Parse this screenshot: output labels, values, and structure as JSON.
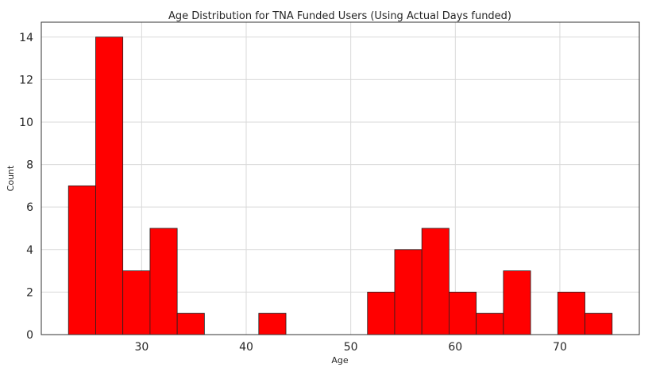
{
  "chart_data": {
    "type": "bar",
    "title": "Age Distribution for TNA Funded Users (Using Actual Days funded)",
    "xlabel": "Age",
    "ylabel": "Count",
    "xlim": [
      20.4,
      77.6
    ],
    "ylim": [
      0,
      14.7
    ],
    "xticks": [
      30,
      40,
      50,
      60,
      70
    ],
    "yticks": [
      0,
      2,
      4,
      6,
      8,
      10,
      12,
      14
    ],
    "grid": true,
    "bar_color": "#ff0000",
    "bins": [
      {
        "start": 23.0,
        "end": 25.6,
        "count": 7
      },
      {
        "start": 25.6,
        "end": 28.2,
        "count": 14
      },
      {
        "start": 28.2,
        "end": 30.8,
        "count": 3
      },
      {
        "start": 30.8,
        "end": 33.4,
        "count": 5
      },
      {
        "start": 33.4,
        "end": 36.0,
        "count": 1
      },
      {
        "start": 36.0,
        "end": 38.6,
        "count": 0
      },
      {
        "start": 38.6,
        "end": 41.2,
        "count": 0
      },
      {
        "start": 41.2,
        "end": 43.8,
        "count": 1
      },
      {
        "start": 43.8,
        "end": 46.4,
        "count": 0
      },
      {
        "start": 46.4,
        "end": 49.0,
        "count": 0
      },
      {
        "start": 49.0,
        "end": 51.6,
        "count": 0
      },
      {
        "start": 51.6,
        "end": 54.2,
        "count": 2
      },
      {
        "start": 54.2,
        "end": 56.8,
        "count": 4
      },
      {
        "start": 56.8,
        "end": 59.4,
        "count": 5
      },
      {
        "start": 59.4,
        "end": 62.0,
        "count": 2
      },
      {
        "start": 62.0,
        "end": 64.6,
        "count": 1
      },
      {
        "start": 64.6,
        "end": 67.2,
        "count": 3
      },
      {
        "start": 67.2,
        "end": 69.8,
        "count": 0
      },
      {
        "start": 69.8,
        "end": 72.4,
        "count": 2
      },
      {
        "start": 72.4,
        "end": 75.0,
        "count": 1
      }
    ]
  }
}
